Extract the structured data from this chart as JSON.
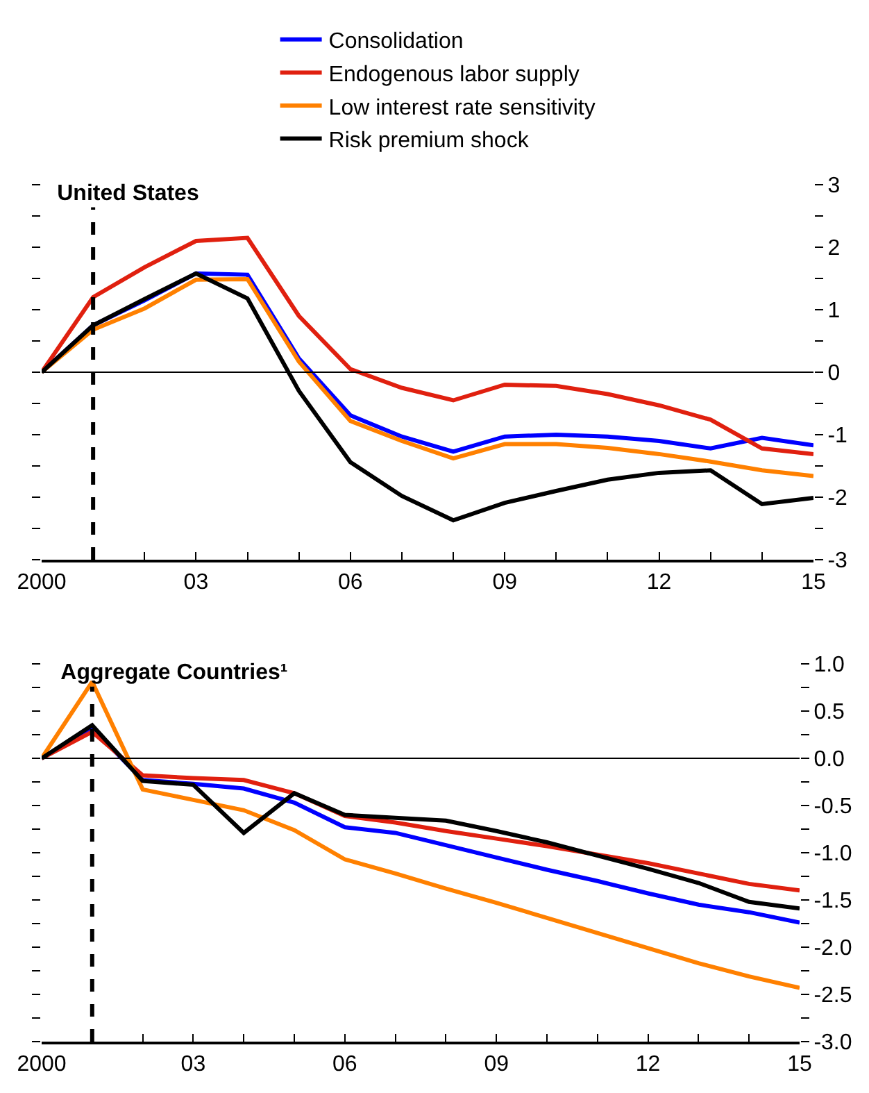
{
  "chart_data": [
    {
      "type": "line",
      "title": "United States",
      "x": [
        2000,
        2001,
        2002,
        2003,
        2004,
        2005,
        2006,
        2007,
        2008,
        2009,
        2010,
        2011,
        2012,
        2013,
        2014,
        2015
      ],
      "series": [
        {
          "name": "Consolidation",
          "color": "#0000ff",
          "values": [
            0,
            0.75,
            1.15,
            1.58,
            1.56,
            0.22,
            -0.69,
            -1.03,
            -1.27,
            -1.03,
            -1.0,
            -1.03,
            -1.1,
            -1.22,
            -1.05,
            -1.17
          ]
        },
        {
          "name": "Endogenous labor supply",
          "color": "#e0200f",
          "values": [
            0,
            1.2,
            1.68,
            2.1,
            2.15,
            0.9,
            0.05,
            -0.25,
            -0.45,
            -0.2,
            -0.22,
            -0.35,
            -0.53,
            -0.76,
            -1.22,
            -1.31
          ]
        },
        {
          "name": "Low interest rate sensitivity",
          "color": "#ff8000",
          "values": [
            0,
            0.68,
            1.02,
            1.48,
            1.49,
            0.17,
            -0.78,
            -1.1,
            -1.38,
            -1.15,
            -1.15,
            -1.21,
            -1.31,
            -1.43,
            -1.57,
            -1.66
          ]
        },
        {
          "name": "Risk premium shock",
          "color": "#000000",
          "values": [
            0,
            0.75,
            1.17,
            1.58,
            1.18,
            -0.3,
            -1.44,
            -1.98,
            -2.37,
            -2.09,
            -1.9,
            -1.72,
            -1.61,
            -1.57,
            -2.11,
            -2.01
          ]
        }
      ],
      "xlim": [
        2000,
        2015
      ],
      "xticks": [
        2000,
        {
          "value": 2001,
          "label": null
        },
        {
          "value": 2002,
          "label": null
        },
        {
          "value": 2003,
          "label": "03"
        },
        {
          "value": 2004,
          "label": null
        },
        {
          "value": 2005,
          "label": null
        },
        {
          "value": 2006,
          "label": "06"
        },
        {
          "value": 2007,
          "label": null
        },
        {
          "value": 2008,
          "label": null
        },
        {
          "value": 2009,
          "label": "09"
        },
        {
          "value": 2010,
          "label": null
        },
        {
          "value": 2011,
          "label": null
        },
        {
          "value": 2012,
          "label": "12"
        },
        {
          "value": 2013,
          "label": null
        },
        {
          "value": 2014,
          "label": null
        },
        {
          "value": 2015,
          "label": "15"
        }
      ],
      "ylim": [
        -3,
        3
      ],
      "yticks": [
        -3,
        {
          "value": -2.5,
          "label": null
        },
        -2,
        {
          "value": -1.5,
          "label": null
        },
        -1,
        {
          "value": -0.5,
          "label": null
        },
        0,
        {
          "value": 0.5,
          "label": null
        },
        1,
        {
          "value": 1.5,
          "label": null
        },
        2,
        {
          "value": 2.5,
          "label": null
        },
        3
      ],
      "ref_lines": [
        {
          "axis": "x",
          "value": 2001,
          "line_style": "dashed",
          "color": "#000000"
        },
        {
          "axis": "y",
          "value": 0,
          "color": "#000000"
        }
      ],
      "legend": "top",
      "grid": false,
      "line_style": "solid",
      "marker": "none"
    },
    {
      "type": "line",
      "title": "Aggregate Countries¹",
      "x": [
        2000,
        2001,
        2002,
        2003,
        2004,
        2005,
        2006,
        2007,
        2008,
        2009,
        2010,
        2011,
        2012,
        2013,
        2014,
        2015
      ],
      "series": [
        {
          "color": "#0000ff",
          "values": [
            0,
            0.32,
            -0.23,
            -0.27,
            -0.32,
            -0.47,
            -0.73,
            -0.79,
            -0.92,
            -1.05,
            -1.18,
            -1.3,
            -1.43,
            -1.55,
            -1.63,
            -1.74
          ]
        },
        {
          "color": "#e0200f",
          "values": [
            0,
            0.28,
            -0.18,
            -0.21,
            -0.23,
            -0.37,
            -0.61,
            -0.68,
            -0.77,
            -0.85,
            -0.93,
            -1.02,
            -1.11,
            -1.22,
            -1.33,
            -1.4
          ]
        },
        {
          "color": "#ff8000",
          "values": [
            0,
            0.81,
            -0.33,
            -0.44,
            -0.55,
            -0.76,
            -1.07,
            -1.22,
            -1.38,
            -1.53,
            -1.69,
            -1.85,
            -2.01,
            -2.17,
            -2.31,
            -2.43
          ]
        },
        {
          "color": "#000000",
          "values": [
            0,
            0.35,
            -0.24,
            -0.28,
            -0.79,
            -0.37,
            -0.6,
            -0.63,
            -0.66,
            -0.77,
            -0.89,
            -1.03,
            -1.17,
            -1.32,
            -1.52,
            -1.59
          ]
        }
      ],
      "xlim": [
        2000,
        2015
      ],
      "xticks": [
        2000,
        {
          "value": 2001,
          "label": null
        },
        {
          "value": 2002,
          "label": null
        },
        {
          "value": 2003,
          "label": "03"
        },
        {
          "value": 2004,
          "label": null
        },
        {
          "value": 2005,
          "label": null
        },
        {
          "value": 2006,
          "label": "06"
        },
        {
          "value": 2007,
          "label": null
        },
        {
          "value": 2008,
          "label": null
        },
        {
          "value": 2009,
          "label": "09"
        },
        {
          "value": 2010,
          "label": null
        },
        {
          "value": 2011,
          "label": null
        },
        {
          "value": 2012,
          "label": "12"
        },
        {
          "value": 2013,
          "label": null
        },
        {
          "value": 2014,
          "label": null
        },
        {
          "value": 2015,
          "label": "15"
        }
      ],
      "ylim": [
        -3,
        1
      ],
      "yticks": [
        {
          "value": -3,
          "label": "-3.0"
        },
        {
          "value": -2.75,
          "label": null
        },
        {
          "value": -2.5,
          "label": "-2.5"
        },
        {
          "value": -2.25,
          "label": null
        },
        {
          "value": -2,
          "label": "-2.0"
        },
        {
          "value": -1.75,
          "label": null
        },
        {
          "value": -1.5,
          "label": "-1.5"
        },
        {
          "value": -1.25,
          "label": null
        },
        {
          "value": -1,
          "label": "-1.0"
        },
        {
          "value": -0.75,
          "label": null
        },
        {
          "value": -0.5,
          "label": "-0.5"
        },
        {
          "value": -0.25,
          "label": null
        },
        {
          "value": 0,
          "label": "0.0"
        },
        {
          "value": 0.25,
          "label": null
        },
        {
          "value": 0.5,
          "label": "0.5"
        },
        {
          "value": 0.75,
          "label": null
        },
        {
          "value": 1,
          "label": "1.0"
        }
      ],
      "ref_lines": [
        {
          "axis": "x",
          "value": 2001,
          "line_style": "dashed",
          "color": "#000000"
        },
        {
          "axis": "y",
          "value": 0,
          "color": "#000000"
        }
      ],
      "legend": false,
      "grid": false,
      "line_style": "solid",
      "marker": "none"
    }
  ]
}
